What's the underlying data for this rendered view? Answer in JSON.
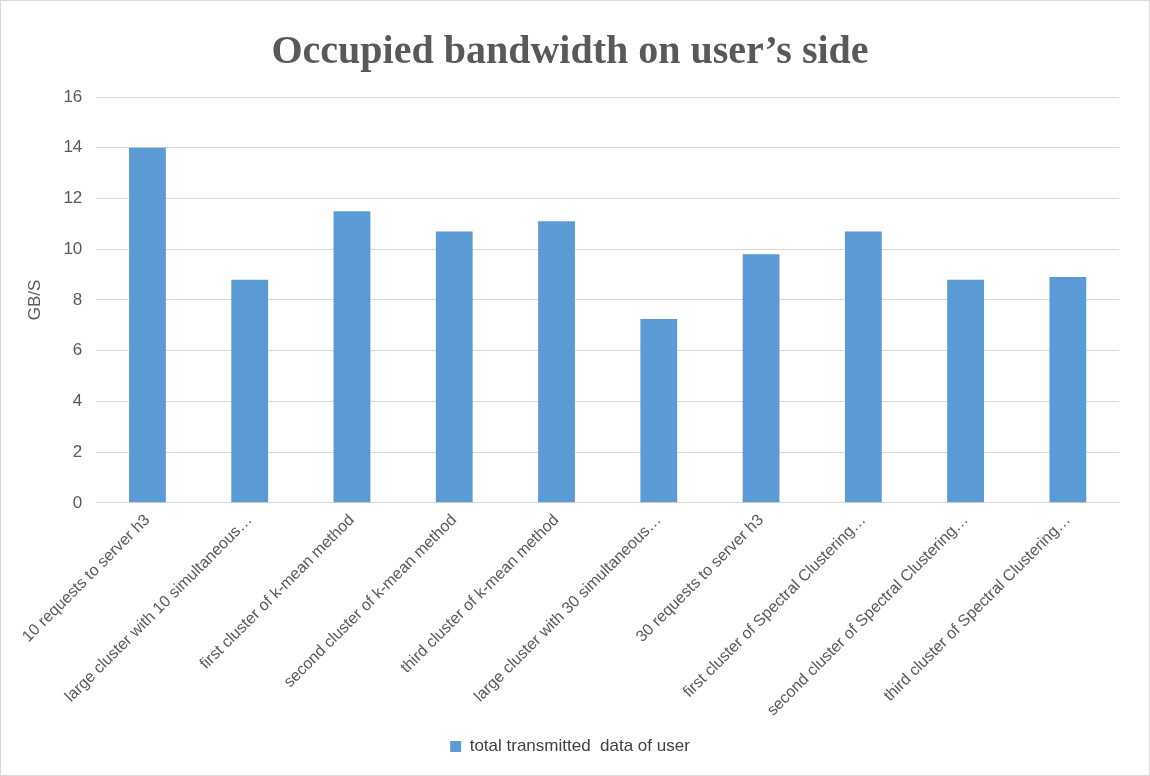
{
  "chart_data": {
    "type": "bar",
    "title": "Occupied bandwidth on user’s side",
    "ylabel": "GB/S",
    "categories": [
      "10 requests to server h3",
      "large cluster with 10 simultaneous…",
      "first cluster of k-mean method",
      "second cluster of k-mean method",
      "third cluster of k-mean method",
      "large cluster with 30 simultaneous…",
      "30 requests to server h3",
      "first cluster of Spectral Clustering…",
      "second cluster of Spectral Clustering…",
      "third cluster of Spectral Clustering…"
    ],
    "series": [
      {
        "name": "total transmitted  data of user",
        "color": "#5b9bd5",
        "values": [
          14.0,
          8.8,
          11.5,
          10.7,
          11.1,
          7.25,
          9.8,
          10.7,
          8.8,
          8.9
        ]
      }
    ],
    "ylim": [
      0,
      16
    ],
    "yticks": [
      0,
      2,
      4,
      6,
      8,
      10,
      12,
      14,
      16
    ],
    "grid": "y",
    "legend": "bottom"
  }
}
